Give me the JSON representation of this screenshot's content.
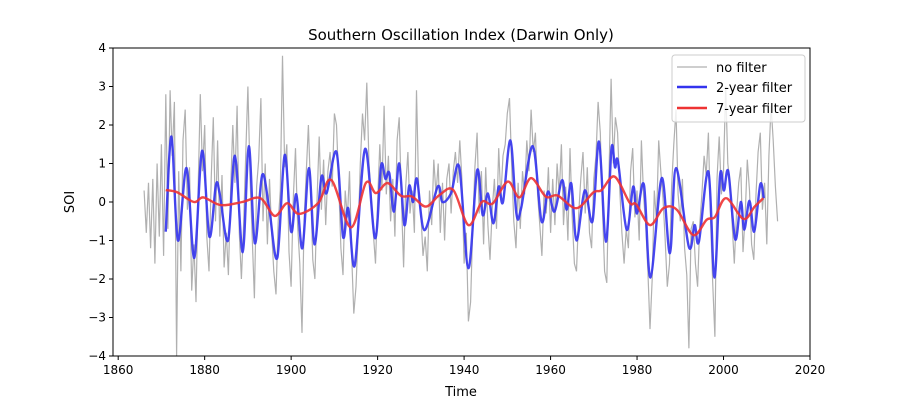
{
  "chart_data": {
    "type": "line",
    "title": "Southern Oscillation Index (Darwin Only)",
    "xlabel": "Time",
    "ylabel": "SOI",
    "xlim": [
      1858.8,
      2020
    ],
    "ylim": [
      -4,
      4
    ],
    "xticks": [
      1860,
      1880,
      1900,
      1920,
      1940,
      1960,
      1980,
      2000,
      2020
    ],
    "yticks": [
      -4,
      -3,
      -2,
      -1,
      0,
      1,
      2,
      3,
      4
    ],
    "grid": false,
    "legend_position": "top-right",
    "series": [
      {
        "name": "no filter",
        "color": "#b0b0b0",
        "start": 1866,
        "step": 0.5,
        "values": [
          0.3,
          -0.8,
          0.5,
          -1.2,
          0.6,
          -1.6,
          1.0,
          -0.9,
          1.5,
          -1.4,
          2.8,
          -0.7,
          2.9,
          1.2,
          2.6,
          -4.0,
          0.8,
          -1.8,
          1.6,
          2.4,
          -0.2,
          0.9,
          -2.3,
          -1.1,
          -2.6,
          0.4,
          2.8,
          0.8,
          2.0,
          -0.9,
          -1.8,
          0.6,
          2.2,
          -0.5,
          1.6,
          -0.9,
          0.7,
          -1.7,
          -0.8,
          -1.9,
          0.3,
          2.0,
          0.5,
          2.5,
          -0.8,
          -2.0,
          -0.6,
          1.2,
          3.0,
          0.6,
          -0.9,
          -2.5,
          0.4,
          1.1,
          2.7,
          -0.5,
          1.0,
          -1.1,
          0.6,
          -0.8,
          -1.8,
          -2.4,
          -0.5,
          0.3,
          3.8,
          0.9,
          1.5,
          -1.3,
          -2.2,
          0.1,
          1.4,
          -0.6,
          -1.6,
          -3.4,
          -0.5,
          0.8,
          2.0,
          0.3,
          -1.5,
          -2.0,
          0.1,
          1.7,
          -0.2,
          1.1,
          -0.6,
          0.8,
          1.3,
          0.4,
          2.3,
          2.0,
          0.5,
          -1.2,
          -1.9,
          0.3,
          -0.4,
          0.8,
          -1.4,
          -2.9,
          -2.2,
          -0.8,
          1.0,
          2.3,
          1.6,
          3.1,
          1.0,
          0.2,
          -0.8,
          -1.6,
          0.0,
          1.5,
          0.3,
          2.5,
          0.2,
          1.2,
          -0.5,
          0.6,
          -0.9,
          1.6,
          2.2,
          0.1,
          -1.7,
          0.4,
          1.3,
          -0.3,
          0.3,
          -0.8,
          2.9,
          0.3,
          -0.3,
          -1.4,
          -0.9,
          -1.8,
          0.3,
          -0.6,
          1.1,
          0.2,
          1.0,
          -0.8,
          0.5,
          -1.0,
          0.6,
          1.0,
          -0.3,
          0.8,
          1.3,
          0.5,
          1.6,
          0.6,
          -1.6,
          -0.8,
          -3.1,
          -2.6,
          -0.7,
          0.9,
          1.8,
          -0.3,
          0.8,
          -1.1,
          0.9,
          -0.6,
          -1.5,
          -0.2,
          0.6,
          -0.7,
          1.4,
          0.1,
          1.2,
          1.5,
          2.3,
          2.7,
          0.9,
          -0.5,
          -1.2,
          0.5,
          -0.7,
          0.8,
          0.2,
          1.6,
          0.8,
          2.4,
          1.3,
          1.8,
          0.2,
          -0.6,
          -1.4,
          0.3,
          -0.3,
          0.9,
          -0.8,
          0.6,
          -0.6,
          1.0,
          0.2,
          1.5,
          -0.6,
          0.4,
          -1.0,
          1.4,
          -0.4,
          -1.6,
          -1.8,
          -0.3,
          0.6,
          1.3,
          -0.3,
          0.9,
          -0.8,
          -1.2,
          0.6,
          1.2,
          2.6,
          1.8,
          -0.2,
          -1.8,
          -2.1,
          0.6,
          3.2,
          1.0,
          2.2,
          1.8,
          0.3,
          -0.8,
          -1.6,
          -0.7,
          -1.2,
          0.8,
          1.4,
          -0.4,
          0.3,
          -1.0,
          1.6,
          0.2,
          -0.6,
          -1.8,
          -3.3,
          -2.0,
          0.3,
          -0.5,
          1.6,
          0.8,
          0.1,
          -1.0,
          -2.2,
          -1.6,
          0.4,
          1.5,
          2.4,
          0.2,
          -0.5,
          0.6,
          -1.2,
          -1.9,
          -3.8,
          -0.7,
          -0.5,
          -1.6,
          -2.2,
          -0.6,
          0.2,
          1.2,
          0.7,
          1.8,
          -0.5,
          -2.1,
          -3.5,
          0.6,
          1.7,
          0.2,
          0.8,
          3.0,
          1.0,
          0.5,
          -0.6,
          -1.6,
          -0.3,
          0.5,
          0.9,
          -1.3,
          -0.4,
          1.1,
          0.3,
          -1.1,
          -1.5,
          0.2,
          1.3,
          1.8,
          -0.2,
          0.5,
          -1.1,
          1.2,
          2.5,
          1.6,
          0.4,
          -0.5
        ]
      },
      {
        "name": "2-year filter",
        "color": "#3333ee",
        "points": [
          [
            1871.0,
            -0.77
          ],
          [
            1872.3,
            1.7
          ],
          [
            1873.8,
            -1.0
          ],
          [
            1875.8,
            0.88
          ],
          [
            1877.6,
            -1.45
          ],
          [
            1879.4,
            1.33
          ],
          [
            1881.1,
            -0.9
          ],
          [
            1882.6,
            0.44
          ],
          [
            1883.5,
            0.2
          ],
          [
            1885.4,
            -1.0
          ],
          [
            1887.0,
            1.2
          ],
          [
            1888.8,
            -1.3
          ],
          [
            1890.2,
            1.45
          ],
          [
            1891.6,
            -1.07
          ],
          [
            1893.3,
            0.7
          ],
          [
            1894.9,
            -0.15
          ],
          [
            1896.8,
            -1.45
          ],
          [
            1898.5,
            1.22
          ],
          [
            1900.0,
            -0.77
          ],
          [
            1901.2,
            0.2
          ],
          [
            1902.6,
            -1.2
          ],
          [
            1904.1,
            0.88
          ],
          [
            1905.4,
            -1.1
          ],
          [
            1907.0,
            0.65
          ],
          [
            1908.2,
            0.23
          ],
          [
            1910.5,
            1.3
          ],
          [
            1912.0,
            -0.9
          ],
          [
            1913.2,
            -0.16
          ],
          [
            1914.7,
            -1.65
          ],
          [
            1917.1,
            1.38
          ],
          [
            1919.4,
            -0.94
          ],
          [
            1920.8,
            0.94
          ],
          [
            1921.8,
            0.6
          ],
          [
            1922.7,
            0.75
          ],
          [
            1923.8,
            -0.25
          ],
          [
            1925.0,
            1.0
          ],
          [
            1926.2,
            -0.6
          ],
          [
            1927.3,
            0.42
          ],
          [
            1928.2,
            0.0
          ],
          [
            1929.1,
            0.6
          ],
          [
            1930.8,
            -0.73
          ],
          [
            1933.9,
            0.4
          ],
          [
            1935.0,
            0.0
          ],
          [
            1937.0,
            0.23
          ],
          [
            1938.9,
            0.9
          ],
          [
            1941.0,
            -1.72
          ],
          [
            1943.0,
            0.82
          ],
          [
            1944.3,
            -0.34
          ],
          [
            1945.5,
            0.22
          ],
          [
            1946.8,
            -0.55
          ],
          [
            1948.0,
            0.4
          ],
          [
            1949.0,
            0.0
          ],
          [
            1950.7,
            1.6
          ],
          [
            1952.1,
            -0.3
          ],
          [
            1953.2,
            -0.15
          ],
          [
            1955.9,
            1.45
          ],
          [
            1957.9,
            -0.5
          ],
          [
            1959.4,
            0.27
          ],
          [
            1960.9,
            -0.25
          ],
          [
            1962.7,
            0.57
          ],
          [
            1963.7,
            -0.2
          ],
          [
            1964.8,
            0.48
          ],
          [
            1966.0,
            -1.0
          ],
          [
            1967.9,
            0.3
          ],
          [
            1969.7,
            -0.5
          ],
          [
            1971.2,
            1.57
          ],
          [
            1972.8,
            -1.03
          ],
          [
            1974.1,
            1.4
          ],
          [
            1974.9,
            0.9
          ],
          [
            1975.6,
            1.05
          ],
          [
            1977.6,
            -0.72
          ],
          [
            1979.1,
            0.4
          ],
          [
            1980.0,
            -0.3
          ],
          [
            1981.6,
            0.44
          ],
          [
            1983.1,
            -1.96
          ],
          [
            1985.7,
            0.62
          ],
          [
            1987.6,
            -1.33
          ],
          [
            1989.0,
            0.88
          ],
          [
            1992.0,
            -1.17
          ],
          [
            1993.3,
            -0.6
          ],
          [
            1994.3,
            -1.03
          ],
          [
            1996.5,
            0.79
          ],
          [
            1997.9,
            -1.96
          ],
          [
            1999.2,
            0.7
          ],
          [
            2000.1,
            0.3
          ],
          [
            2001.1,
            0.79
          ],
          [
            2002.7,
            -0.97
          ],
          [
            2004.0,
            0.0
          ],
          [
            2004.8,
            -0.72
          ],
          [
            2006.0,
            0.03
          ],
          [
            2007.1,
            -0.77
          ],
          [
            2008.5,
            0.46
          ],
          [
            2009.3,
            0.1
          ]
        ]
      },
      {
        "name": "7-year filter",
        "color": "#ee3333",
        "points": [
          [
            1871.0,
            0.31
          ],
          [
            1873.7,
            0.25
          ],
          [
            1877.5,
            0.0
          ],
          [
            1879.7,
            0.12
          ],
          [
            1883.7,
            -0.08
          ],
          [
            1888.7,
            0.0
          ],
          [
            1892.9,
            0.1
          ],
          [
            1896.2,
            -0.36
          ],
          [
            1899.1,
            -0.03
          ],
          [
            1901.8,
            -0.31
          ],
          [
            1906.3,
            -0.02
          ],
          [
            1909.3,
            0.57
          ],
          [
            1913.8,
            -0.66
          ],
          [
            1917.3,
            0.5
          ],
          [
            1919.6,
            0.23
          ],
          [
            1922.3,
            0.49
          ],
          [
            1925.4,
            0.16
          ],
          [
            1928.0,
            0.14
          ],
          [
            1931.2,
            -0.12
          ],
          [
            1934.3,
            0.18
          ],
          [
            1937.5,
            0.31
          ],
          [
            1941.0,
            -0.6
          ],
          [
            1944.1,
            0.0
          ],
          [
            1946.6,
            -0.04
          ],
          [
            1950.1,
            0.53
          ],
          [
            1952.8,
            0.12
          ],
          [
            1955.5,
            0.62
          ],
          [
            1958.9,
            0.14
          ],
          [
            1961.6,
            0.17
          ],
          [
            1966.0,
            -0.16
          ],
          [
            1969.9,
            0.25
          ],
          [
            1971.8,
            0.31
          ],
          [
            1974.8,
            0.66
          ],
          [
            1978.3,
            -0.02
          ],
          [
            1979.8,
            -0.06
          ],
          [
            1983.0,
            -0.6
          ],
          [
            1986.1,
            -0.16
          ],
          [
            1989.2,
            -0.2
          ],
          [
            1993.0,
            -0.86
          ],
          [
            1996.1,
            -0.46
          ],
          [
            1998.0,
            -0.39
          ],
          [
            2000.6,
            0.1
          ],
          [
            2004.6,
            -0.44
          ],
          [
            2007.2,
            -0.12
          ],
          [
            2009.2,
            0.1
          ]
        ]
      }
    ]
  }
}
